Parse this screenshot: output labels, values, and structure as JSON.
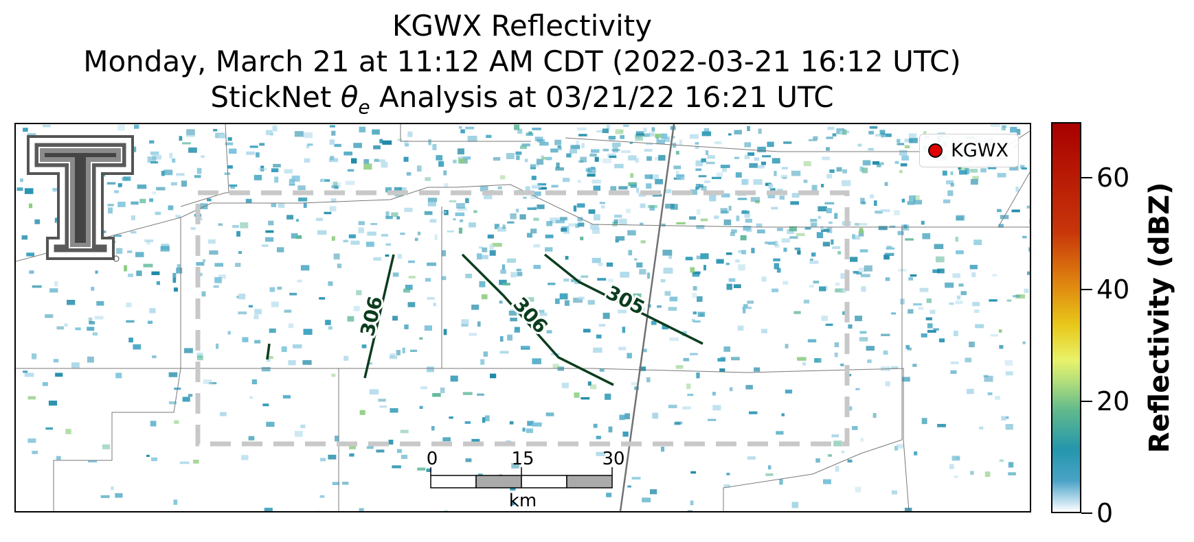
{
  "title": {
    "line1": "KGWX Reflectivity",
    "line2": "Monday, March 21 at 11:12 AM CDT (2022-03-21 16:12 UTC)",
    "line3_prefix": "StickNet ",
    "line3_symbol": "θ",
    "line3_subscript": "e",
    "line3_suffix": " Analysis at 03/21/22 16:21 UTC"
  },
  "legend": {
    "label": "KGWX",
    "marker_color": "#e00000"
  },
  "contours": [
    {
      "label": "306"
    },
    {
      "label": "306"
    },
    {
      "label": "305"
    }
  ],
  "scale_bar": {
    "ticks": [
      "0",
      "15",
      "30"
    ],
    "unit": "km"
  },
  "colorbar": {
    "title": "Reflectivity (dBZ)",
    "range": [
      0,
      70
    ],
    "ticks": [
      {
        "value": 0,
        "label": "0"
      },
      {
        "value": 20,
        "label": "20"
      },
      {
        "value": 40,
        "label": "40"
      },
      {
        "value": 60,
        "label": "60"
      }
    ]
  },
  "colors": {
    "contour": "#0b3d1e",
    "analysis_box": "#c8c8c8",
    "radar_low": "#2a96b4",
    "radar_mid": "#6cc08a"
  },
  "logo": {
    "name": "texas-tech-double-t-logo"
  }
}
